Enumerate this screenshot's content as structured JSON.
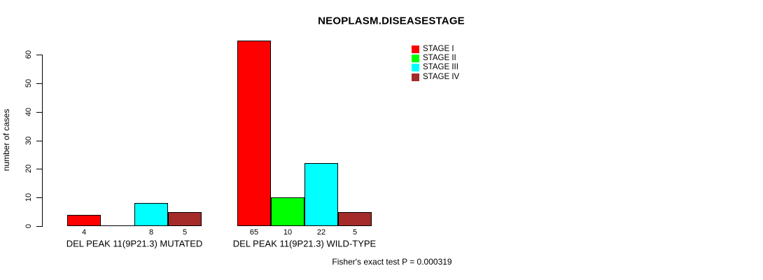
{
  "chart_data": {
    "type": "bar",
    "title": "NEOPLASM.DISEASESTAGE",
    "ylabel": "number of cases",
    "xlabel": "",
    "ylim": [
      0,
      60
    ],
    "yticks": [
      0,
      10,
      20,
      30,
      40,
      50,
      60
    ],
    "grid": false,
    "legend_position": "inside-top-right",
    "categories": [
      "DEL PEAK 11(9P21.3) MUTATED",
      "DEL PEAK 11(9P21.3) WILD-TYPE"
    ],
    "series": [
      {
        "name": "STAGE I",
        "color": "#FF0000",
        "values": [
          4,
          65
        ]
      },
      {
        "name": "STAGE II",
        "color": "#00FF00",
        "values": [
          0,
          10
        ]
      },
      {
        "name": "STAGE III",
        "color": "#00FFFF",
        "values": [
          8,
          22
        ]
      },
      {
        "name": "STAGE IV",
        "color": "#A52A2A",
        "values": [
          5,
          5
        ]
      }
    ],
    "bar_value_labels": [
      [
        "4",
        "",
        "8",
        "5"
      ],
      [
        "65",
        "10",
        "22",
        "5"
      ]
    ],
    "annotation": "Fisher's exact test P = 0.000319"
  }
}
